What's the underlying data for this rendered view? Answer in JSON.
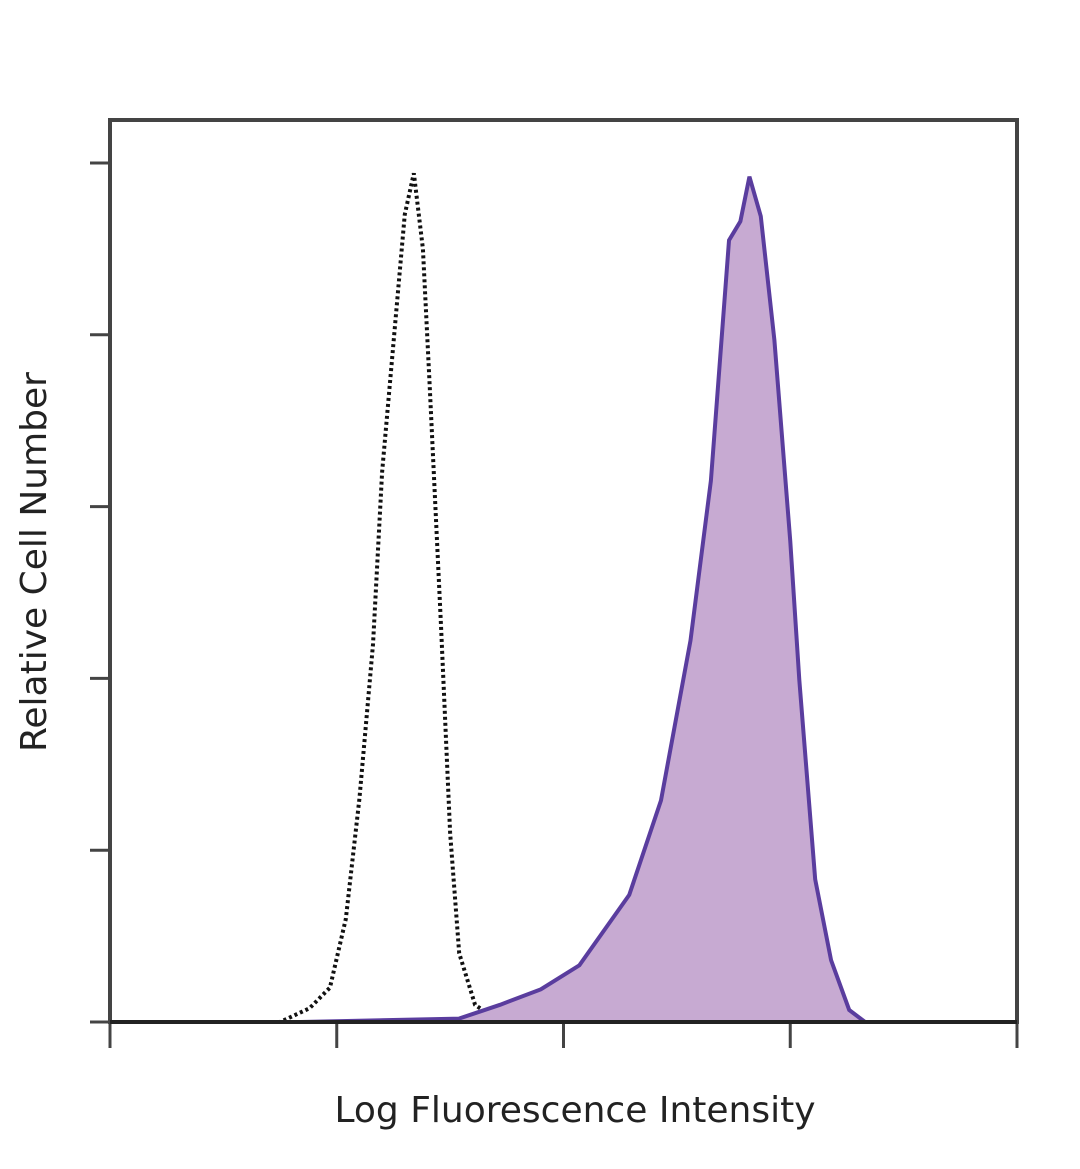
{
  "chart_data": {
    "type": "histogram-overlay",
    "x_label": "Log Fluorescence Intensity",
    "y_label": "Relative Cell Number",
    "log_x": true,
    "xlim": [
      0,
      4
    ],
    "xticks": [
      0,
      1,
      2,
      3,
      4
    ],
    "ylim": [
      0,
      5.25
    ],
    "yticks": [
      0,
      1,
      2,
      3,
      4,
      5
    ],
    "series": [
      {
        "color": "#111111",
        "dashed": true,
        "filled": false,
        "x": [
          0,
          0.75,
          0.88,
          0.97,
          1.04,
          1.1,
          1.16,
          1.2,
          1.26,
          1.3,
          1.34,
          1.38,
          1.41,
          1.46,
          1.5,
          1.54,
          1.61,
          1.72,
          4
        ],
        "values": [
          0,
          0,
          0.08,
          0.2,
          0.6,
          1.3,
          2.2,
          3.2,
          4.1,
          4.7,
          4.94,
          4.5,
          3.7,
          2.3,
          1.1,
          0.4,
          0.1,
          0,
          0
        ]
      },
      {
        "color": "#5a3d9e",
        "fill": "#c7aad2",
        "dashed": false,
        "filled": true,
        "x": [
          0.84,
          1.54,
          1.72,
          1.9,
          2.07,
          2.29,
          2.43,
          2.56,
          2.65,
          2.73,
          2.78,
          2.82,
          2.87,
          2.93,
          3.0,
          3.04,
          3.11,
          3.18,
          3.26,
          3.33
        ],
        "values": [
          0,
          0.02,
          0.1,
          0.19,
          0.33,
          0.74,
          1.29,
          2.22,
          3.15,
          4.55,
          4.66,
          4.92,
          4.69,
          3.97,
          2.8,
          1.99,
          0.83,
          0.36,
          0.07,
          0
        ]
      }
    ]
  }
}
